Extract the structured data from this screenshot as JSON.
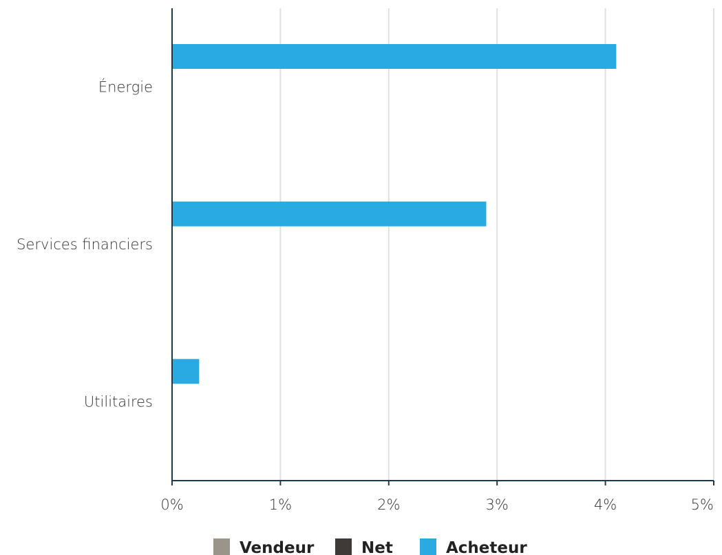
{
  "chart_data": {
    "type": "bar",
    "orientation": "horizontal",
    "categories": [
      "Énergie",
      "Services financiers",
      "Utilitaires"
    ],
    "series": [
      {
        "name": "Vendeur",
        "color": "#9b948a",
        "values": [
          0,
          0,
          0
        ]
      },
      {
        "name": "Net",
        "color": "#3f3a37",
        "values": [
          0,
          0,
          0
        ]
      },
      {
        "name": "Acheteur",
        "color": "#29abe2",
        "values": [
          4.1,
          2.9,
          0.25
        ]
      }
    ],
    "xlim": [
      0,
      5
    ],
    "x_ticks": [
      0,
      1,
      2,
      3,
      4,
      5
    ],
    "x_tick_labels": [
      "0%",
      "1%",
      "2%",
      "3%",
      "4%",
      "5%"
    ],
    "grid": "vertical",
    "legend_position": "bottom-center",
    "colors": {
      "axis": "#1a3a4a",
      "grid": "#e0e0e0"
    }
  }
}
